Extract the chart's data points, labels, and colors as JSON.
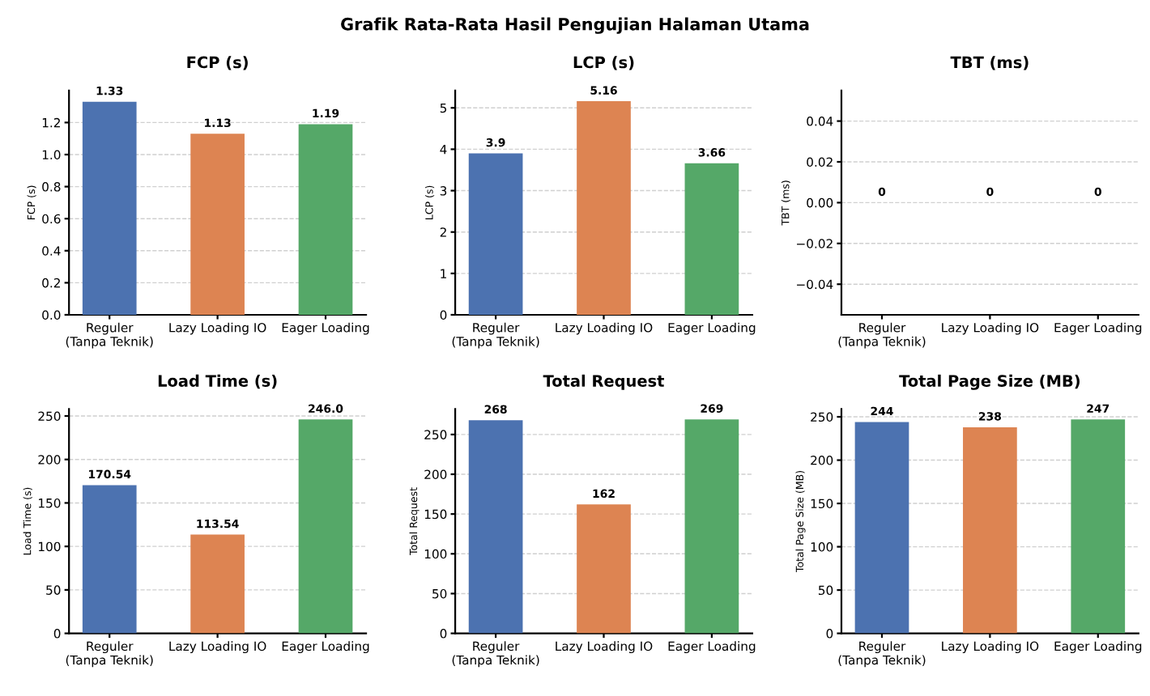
{
  "chart_data": [
    {
      "type": "bar",
      "title": "FCP (s)",
      "ylabel": "FCP (s)",
      "annotations": [
        "Grafik Rata-Rata Hasil Pengujian Halaman Utama"
      ],
      "categories": [
        "Reguler\n(Tanpa Teknik)",
        "Lazy Loading IO",
        "Eager Loading"
      ],
      "values": [
        1.33,
        1.13,
        1.19
      ],
      "value_labels": [
        "1.33",
        "1.13",
        "1.19"
      ],
      "colors": [
        "#4c72b0",
        "#dd8452",
        "#55a868"
      ],
      "ylim": [
        0,
        1.4
      ],
      "yticks": [
        {
          "value": 0,
          "label": "0.0"
        },
        0.2,
        0.4,
        0.6,
        0.8,
        {
          "value": 1,
          "label": "1.0"
        },
        1.2
      ],
      "grid": "y"
    },
    {
      "type": "bar",
      "title": "LCP (s)",
      "ylabel": "LCP (s)",
      "categories": [
        "Reguler\n(Tanpa Teknik)",
        "Lazy Loading IO",
        "Eager Loading"
      ],
      "values": [
        3.9,
        5.16,
        3.66
      ],
      "value_labels": [
        "3.9",
        "5.16",
        "3.66"
      ],
      "colors": [
        "#4c72b0",
        "#dd8452",
        "#55a868"
      ],
      "ylim": [
        0,
        5.42
      ],
      "yticks": [
        0,
        1,
        2,
        3,
        4,
        5
      ],
      "grid": "y"
    },
    {
      "type": "bar",
      "title": "TBT (ms)",
      "ylabel": "TBT (ms)",
      "categories": [
        "Reguler\n(Tanpa Teknik)",
        "Lazy Loading IO",
        "Eager Loading"
      ],
      "values": [
        0,
        0,
        0
      ],
      "value_labels": [
        "0",
        "0",
        "0"
      ],
      "colors": [
        "#4c72b0",
        "#dd8452",
        "#55a868"
      ],
      "ylim": [
        -0.055,
        0.055
      ],
      "yticks": [
        {
          "value": -0.04,
          "label": "−0.04"
        },
        {
          "value": -0.02,
          "label": "−0.02"
        },
        {
          "value": 0.0,
          "label": "0.00"
        },
        {
          "value": 0.02,
          "label": "0.02"
        },
        {
          "value": 0.04,
          "label": "0.04"
        }
      ],
      "grid": "y"
    },
    {
      "type": "bar",
      "title": "Load Time (s)",
      "ylabel": "Load Time (s)",
      "categories": [
        "Reguler\n(Tanpa Teknik)",
        "Lazy Loading IO",
        "Eager Loading"
      ],
      "values": [
        170.54,
        113.54,
        246.0
      ],
      "value_labels": [
        "170.54",
        "113.54",
        "246.0"
      ],
      "colors": [
        "#4c72b0",
        "#dd8452",
        "#55a868"
      ],
      "ylim": [
        0,
        258
      ],
      "yticks": [
        0,
        50,
        100,
        150,
        200,
        250
      ],
      "grid": "y"
    },
    {
      "type": "bar",
      "title": "Total Request",
      "ylabel": "Total Request",
      "categories": [
        "Reguler\n(Tanpa Teknik)",
        "Lazy Loading IO",
        "Eager Loading"
      ],
      "values": [
        268,
        162,
        269
      ],
      "value_labels": [
        "268",
        "162",
        "269"
      ],
      "colors": [
        "#4c72b0",
        "#dd8452",
        "#55a868"
      ],
      "ylim": [
        0,
        282
      ],
      "yticks": [
        0,
        50,
        100,
        150,
        200,
        250
      ],
      "grid": "y"
    },
    {
      "type": "bar",
      "title": "Total Page Size (MB)",
      "ylabel": "Total Page Size (MB)",
      "categories": [
        "Reguler\n(Tanpa Teknik)",
        "Lazy Loading IO",
        "Eager Loading"
      ],
      "values": [
        244,
        238,
        247
      ],
      "value_labels": [
        "244",
        "238",
        "247"
      ],
      "colors": [
        "#4c72b0",
        "#dd8452",
        "#55a868"
      ],
      "ylim": [
        0,
        259
      ],
      "yticks": [
        0,
        50,
        100,
        150,
        200,
        250
      ],
      "grid": "y"
    }
  ]
}
